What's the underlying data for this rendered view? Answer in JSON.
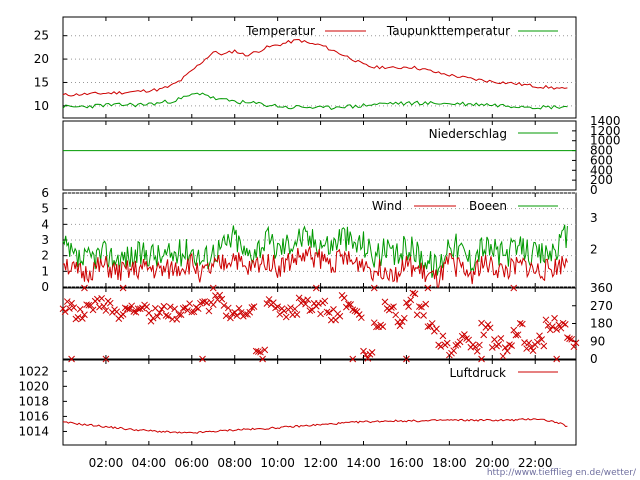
{
  "chart_data": [
    {
      "type": "line",
      "panel": "temperature",
      "y_ticks": [
        "25",
        "20",
        "15",
        "10"
      ],
      "ylim": [
        7.4,
        29
      ],
      "x_hours": [
        0.0,
        0.5,
        1.0,
        1.5,
        2.0,
        2.5,
        3.0,
        3.5,
        4.0,
        4.5,
        5.0,
        5.5,
        6.0,
        6.5,
        7.0,
        7.5,
        8.0,
        8.5,
        9.0,
        9.5,
        10.0,
        10.5,
        11.0,
        11.5,
        12.0,
        12.5,
        13.0,
        13.5,
        14.0,
        14.5,
        15.0,
        15.5,
        16.0,
        16.5,
        17.0,
        17.5,
        18.0,
        18.5,
        19.0,
        19.5,
        20.0,
        20.5,
        21.0,
        21.5,
        22.0,
        22.5,
        23.0,
        23.5
      ],
      "series": [
        {
          "name": "Temperatur",
          "color": "#cc0000",
          "values": [
            12.3,
            12.4,
            12.5,
            12.6,
            12.7,
            12.8,
            12.9,
            13.1,
            13.3,
            13.5,
            14.2,
            15.5,
            17.5,
            19.5,
            21.5,
            21.0,
            21.8,
            20.8,
            21.5,
            22.5,
            23.0,
            23.6,
            24.1,
            23.3,
            23.0,
            22.0,
            21.0,
            20.0,
            18.8,
            18.2,
            18.3,
            18.0,
            18.4,
            18.1,
            17.6,
            17.0,
            16.6,
            16.2,
            15.8,
            15.5,
            15.2,
            15.0,
            14.8,
            14.5,
            14.2,
            14.0,
            13.8,
            13.5
          ]
        },
        {
          "name": "Taupunkttemperatur",
          "color": "#009900",
          "values": [
            9.8,
            9.7,
            9.9,
            10.0,
            10.2,
            10.1,
            10.3,
            10.2,
            10.4,
            10.6,
            11.0,
            11.5,
            12.3,
            12.8,
            11.6,
            11.2,
            11.0,
            10.6,
            10.5,
            10.2,
            10.0,
            9.6,
            9.8,
            9.7,
            9.5,
            9.6,
            10.0,
            9.8,
            10.1,
            10.3,
            10.5,
            10.6,
            10.4,
            10.7,
            10.5,
            10.6,
            10.4,
            10.5,
            10.3,
            10.4,
            10.2,
            10.1,
            10.0,
            10.0,
            9.8,
            9.7,
            9.8,
            9.9
          ]
        }
      ],
      "grid": true
    },
    {
      "type": "line",
      "panel": "precipitation",
      "y_ticks": [
        "1400",
        "1200",
        "1000",
        "800",
        "600",
        "400",
        "200",
        "0"
      ],
      "ylim": [
        0,
        1400
      ],
      "series": [
        {
          "name": "Niederschlag",
          "color": "#009900",
          "values": [
            800,
            800
          ]
        }
      ]
    },
    {
      "type": "line",
      "panel": "wind",
      "y_ticks": [
        "6",
        "5",
        "4",
        "3",
        "2",
        "1",
        "0"
      ],
      "right_ticks": [
        "3",
        "2"
      ],
      "ylim": [
        0,
        6
      ],
      "x_hours": [
        0.0,
        0.5,
        1.0,
        1.5,
        2.0,
        2.5,
        3.0,
        3.5,
        4.0,
        4.5,
        5.0,
        5.5,
        6.0,
        6.5,
        7.0,
        7.5,
        8.0,
        8.5,
        9.0,
        9.5,
        10.0,
        10.5,
        11.0,
        11.5,
        12.0,
        12.5,
        13.0,
        13.5,
        14.0,
        14.5,
        15.0,
        15.5,
        16.0,
        16.5,
        17.0,
        17.5,
        18.0,
        18.5,
        19.0,
        19.5,
        20.0,
        20.5,
        21.0,
        21.5,
        22.0,
        22.5,
        23.0,
        23.5
      ],
      "series": [
        {
          "name": "Wind",
          "color": "#cc0000",
          "values": [
            1.8,
            1.0,
            0.8,
            1.2,
            1.3,
            0.9,
            1.0,
            1.1,
            1.2,
            1.0,
            1.1,
            1.3,
            1.5,
            0.8,
            1.2,
            1.5,
            2.0,
            1.0,
            1.4,
            1.8,
            1.2,
            1.6,
            1.9,
            2.0,
            1.8,
            1.5,
            1.9,
            1.5,
            1.6,
            1.0,
            1.2,
            0.9,
            1.4,
            1.1,
            0.7,
            0.4,
            1.6,
            1.2,
            0.8,
            1.5,
            1.3,
            1.0,
            1.2,
            1.4,
            1.0,
            1.1,
            1.3,
            1.7
          ]
        },
        {
          "name": "Boeen",
          "color": "#009900",
          "values": [
            2.6,
            1.8,
            1.6,
            2.0,
            2.1,
            1.8,
            1.9,
            2.0,
            2.2,
            1.9,
            2.0,
            2.2,
            2.4,
            1.7,
            2.3,
            2.6,
            3.3,
            2.0,
            2.5,
            3.0,
            2.4,
            2.8,
            3.2,
            3.0,
            2.9,
            2.6,
            3.4,
            2.7,
            2.8,
            2.0,
            2.3,
            1.8,
            2.6,
            2.2,
            1.6,
            1.2,
            3.0,
            2.4,
            1.7,
            2.6,
            2.4,
            2.0,
            2.3,
            2.5,
            2.0,
            2.1,
            2.5,
            3.3
          ]
        }
      ]
    },
    {
      "type": "scatter",
      "panel": "wind_direction",
      "y_ticks": [
        "360",
        "270",
        "180",
        "90",
        "0"
      ],
      "ylim": [
        0,
        360
      ],
      "marker": "x",
      "color": "#cc0000",
      "x_hours": [
        0.0,
        0.5,
        1.0,
        1.5,
        2.0,
        2.5,
        3.0,
        3.5,
        4.0,
        4.5,
        5.0,
        5.5,
        6.0,
        6.5,
        7.0,
        7.5,
        8.0,
        8.5,
        9.0,
        9.5,
        10.0,
        10.5,
        11.0,
        11.5,
        12.0,
        12.5,
        13.0,
        13.5,
        14.0,
        14.5,
        15.0,
        15.5,
        16.0,
        16.5,
        17.0,
        17.5,
        18.0,
        18.5,
        19.0,
        19.5,
        20.0,
        20.5,
        21.0,
        21.5,
        22.0,
        22.5,
        23.0,
        23.5
      ],
      "values": [
        270,
        230,
        250,
        290,
        270,
        230,
        250,
        280,
        225,
        240,
        230,
        250,
        260,
        270,
        290,
        240,
        230,
        250,
        20,
        280,
        240,
        230,
        300,
        250,
        260,
        230,
        290,
        240,
        20,
        180,
        280,
        190,
        300,
        250,
        150,
        90,
        40,
        120,
        60,
        150,
        90,
        40,
        150,
        60,
        90,
        180,
        150,
        80
      ],
      "extra_points": [
        [
          0.4,
          0
        ],
        [
          1.0,
          360
        ],
        [
          2.0,
          0
        ],
        [
          2.8,
          360
        ],
        [
          6.5,
          0
        ],
        [
          7.0,
          360
        ],
        [
          11.8,
          360
        ],
        [
          13.5,
          0
        ],
        [
          14.5,
          360
        ],
        [
          16.0,
          0
        ],
        [
          17.0,
          360
        ],
        [
          19.5,
          0
        ],
        [
          21.0,
          360
        ],
        [
          23.0,
          0
        ]
      ]
    },
    {
      "type": "line",
      "panel": "pressure",
      "y_ticks": [
        "1022",
        "1020",
        "1018",
        "1016",
        "1014"
      ],
      "ylim": [
        1012.2,
        1023.5
      ],
      "x_hours": [
        0.0,
        0.5,
        1.0,
        1.5,
        2.0,
        2.5,
        3.0,
        3.5,
        4.0,
        4.5,
        5.0,
        5.5,
        6.0,
        6.5,
        7.0,
        7.5,
        8.0,
        8.5,
        9.0,
        9.5,
        10.0,
        10.5,
        11.0,
        11.5,
        12.0,
        12.5,
        13.0,
        13.5,
        14.0,
        14.5,
        15.0,
        15.5,
        16.0,
        16.5,
        17.0,
        17.5,
        18.0,
        18.5,
        19.0,
        19.5,
        20.0,
        20.5,
        21.0,
        21.5,
        22.0,
        22.5,
        23.0,
        23.5
      ],
      "series": [
        {
          "name": "Luftdruck",
          "color": "#cc0000",
          "values": [
            1015.2,
            1015.1,
            1014.9,
            1014.8,
            1014.6,
            1014.5,
            1014.3,
            1014.2,
            1014.1,
            1014.0,
            1013.9,
            1013.8,
            1013.8,
            1013.9,
            1014.0,
            1014.1,
            1014.2,
            1014.3,
            1014.3,
            1014.4,
            1014.5,
            1014.6,
            1014.7,
            1014.8,
            1014.9,
            1015.0,
            1015.1,
            1015.2,
            1015.3,
            1015.3,
            1015.4,
            1015.4,
            1015.4,
            1015.4,
            1015.4,
            1015.5,
            1015.5,
            1015.5,
            1015.5,
            1015.5,
            1015.5,
            1015.5,
            1015.5,
            1015.6,
            1015.7,
            1015.5,
            1015.2,
            1014.7
          ]
        }
      ]
    }
  ],
  "x_tick_labels": [
    "02:00",
    "04:00",
    "06:00",
    "08:00",
    "10:00",
    "12:00",
    "14:00",
    "16:00",
    "18:00",
    "20:00",
    "22:00"
  ],
  "x_tick_hours": [
    2,
    4,
    6,
    8,
    10,
    12,
    14,
    16,
    18,
    20,
    22
  ],
  "x_range_hours": [
    0,
    23.9
  ],
  "footer_url": "http://www.tiefflieg en.de/wetter/"
}
